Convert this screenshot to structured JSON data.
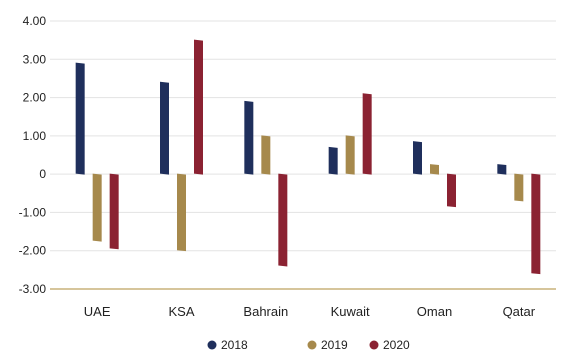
{
  "chart_data": {
    "type": "bar",
    "title": "",
    "xlabel": "",
    "ylabel": "",
    "categories": [
      "UAE",
      "KSA",
      "Bahrain",
      "Kuwait",
      "Oman",
      "Qatar"
    ],
    "y_ticks": [
      "4.00",
      "3.00",
      "2.00",
      "1.00",
      "0",
      "-1.00",
      "-2.00",
      "-3.00"
    ],
    "ylim": [
      -3,
      4
    ],
    "grid": true,
    "legend_position": "bottom",
    "series": [
      {
        "name": "2018",
        "color": "#1f2f5c",
        "values": [
          2.9,
          2.4,
          1.9,
          0.7,
          0.85,
          0.25
        ]
      },
      {
        "name": "2019",
        "color": "#a6894c",
        "values": [
          -1.75,
          -2.0,
          1.0,
          1.0,
          0.25,
          -0.7
        ]
      },
      {
        "name": "2020",
        "color": "#8b2232",
        "values": [
          -1.95,
          3.5,
          -2.4,
          2.1,
          -0.85,
          -2.6
        ]
      }
    ]
  }
}
